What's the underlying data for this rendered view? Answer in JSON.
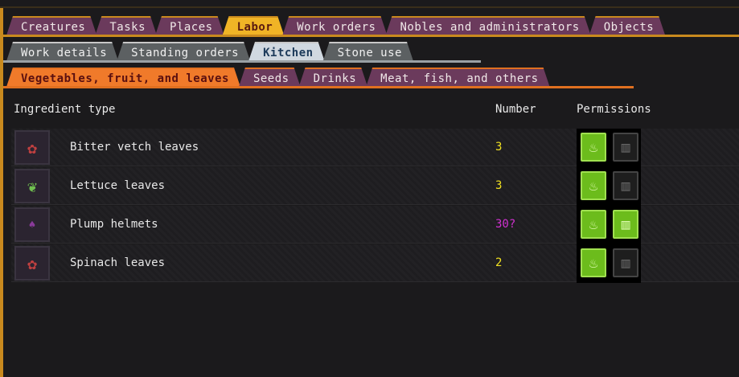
{
  "tabs_main": [
    {
      "label": "Creatures"
    },
    {
      "label": "Tasks"
    },
    {
      "label": "Places"
    },
    {
      "label": "Labor",
      "active": true
    },
    {
      "label": "Work orders"
    },
    {
      "label": "Nobles and administrators"
    },
    {
      "label": "Objects"
    }
  ],
  "tabs_labor": [
    {
      "label": "Work details"
    },
    {
      "label": "Standing orders"
    },
    {
      "label": "Kitchen",
      "active": true
    },
    {
      "label": "Stone use"
    }
  ],
  "tabs_kitchen": [
    {
      "label": "Vegetables, fruit, and leaves",
      "active": true
    },
    {
      "label": "Seeds"
    },
    {
      "label": "Drinks"
    },
    {
      "label": "Meat, fish, and others"
    }
  ],
  "headers": {
    "ingredient": "Ingredient type",
    "number": "Number",
    "permissions": "Permissions"
  },
  "rows": [
    {
      "name": "Bitter vetch leaves",
      "number": "3",
      "icon": "vetch-leaves-icon",
      "cook": true,
      "brew": false
    },
    {
      "name": "Lettuce leaves",
      "number": "3",
      "icon": "lettuce-leaves-icon",
      "cook": true,
      "brew": false
    },
    {
      "name": "Plump helmets",
      "number": "30?",
      "icon": "plump-helmet-icon",
      "cook": true,
      "brew": true
    },
    {
      "name": "Spinach leaves",
      "number": "2",
      "icon": "spinach-leaves-icon",
      "cook": true,
      "brew": false
    }
  ],
  "colors": {
    "number": "#f0e020",
    "number_uncertain": "#d030d0",
    "permission_on": "#6cbc1c"
  }
}
